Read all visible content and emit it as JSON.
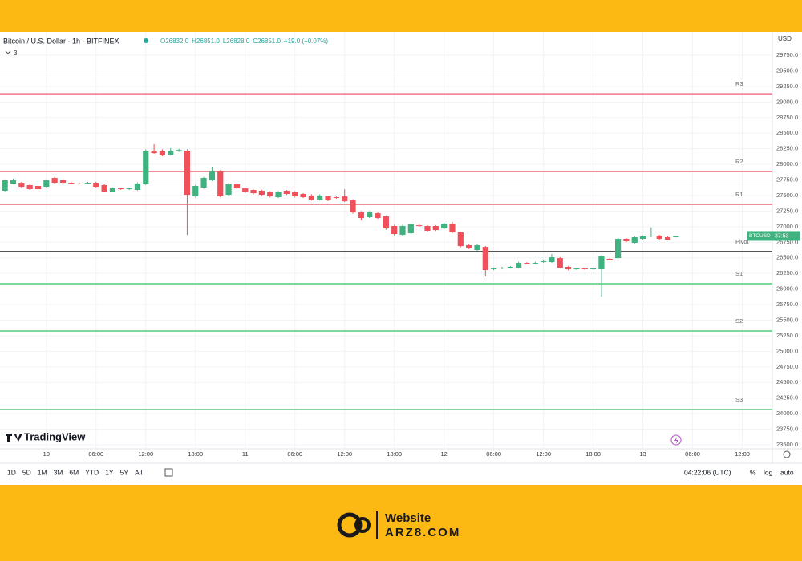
{
  "chart_data": {
    "type": "candlestick",
    "title": "Bitcoin / U.S. Dollar · 1h · BITFINEX",
    "indicator_count": "3",
    "ohlc_legend": [
      "O26832.0",
      "H26851.0",
      "L26828.0",
      "C26851.0",
      "+19.0 (+0.07%)"
    ],
    "currency": "USD",
    "symbol_tag": "BTCUSD",
    "countdown": "37:53",
    "watermark": "TradingView",
    "up_color": "#3fb27f",
    "down_color": "#ef5059",
    "categories": [
      null,
      null,
      null,
      null,
      null,
      "10",
      null,
      null,
      null,
      null,
      null,
      "06:00",
      null,
      null,
      null,
      null,
      null,
      "12:00",
      null,
      null,
      null,
      null,
      null,
      "18:00",
      null,
      null,
      null,
      null,
      null,
      "11",
      null,
      null,
      null,
      null,
      null,
      "06:00",
      null,
      null,
      null,
      null,
      null,
      "12:00",
      null,
      null,
      null,
      null,
      null,
      "18:00",
      null,
      null,
      null,
      null,
      null,
      "12",
      null,
      null,
      null,
      null,
      null,
      "06:00",
      null,
      null,
      null,
      null,
      null,
      "12:00",
      null,
      null,
      null,
      null,
      null,
      "18:00",
      null,
      null,
      null,
      null,
      null,
      "13",
      null,
      null,
      null,
      null,
      null,
      "06:00",
      null,
      null,
      null,
      null,
      null,
      "12:00",
      null,
      null,
      null
    ],
    "open": [
      27577,
      27692,
      27705,
      27667,
      27654,
      27641,
      27782,
      27744,
      27705,
      27692,
      27690,
      27705,
      27667,
      27564,
      27615,
      27602,
      27590,
      27680,
      28220,
      28220,
      28155,
      28220,
      28220,
      27487,
      27628,
      27744,
      27898,
      27512,
      27680,
      27615,
      27590,
      27577,
      27551,
      27474,
      27577,
      27551,
      27525,
      27500,
      27435,
      27487,
      27474,
      27487,
      27422,
      27229,
      27152,
      27216,
      27165,
      27011,
      26869,
      26895,
      27023,
      27011,
      27011,
      26972,
      27049,
      26908,
      26702,
      26625,
      26676,
      26316,
      26329,
      26342,
      26342,
      26419,
      26406,
      26432,
      26432,
      26496,
      26355,
      26316,
      26329,
      26316,
      26316,
      26484,
      26496,
      26805,
      26741,
      26805,
      26844,
      26857,
      26831,
      26832,
      null,
      null,
      null,
      null,
      null,
      null,
      null,
      null,
      null,
      null,
      null
    ],
    "high": [
      27760,
      27770,
      27720,
      27680,
      27670,
      27760,
      27800,
      27760,
      27720,
      27705,
      27720,
      27720,
      27680,
      27630,
      27625,
      27630,
      27710,
      28240,
      28323,
      28240,
      28260,
      28250,
      28240,
      27670,
      27800,
      27960,
      27910,
      27700,
      27700,
      27630,
      27600,
      27590,
      27570,
      27570,
      27590,
      27570,
      27540,
      27520,
      27520,
      27500,
      27490,
      27600,
      27440,
      27250,
      27250,
      27230,
      27180,
      27030,
      27030,
      27050,
      27040,
      27025,
      27025,
      27065,
      27080,
      26920,
      26715,
      26720,
      26690,
      26345,
      26355,
      26370,
      26435,
      26430,
      26435,
      26460,
      26561,
      26510,
      26370,
      26340,
      26340,
      26345,
      26540,
      26500,
      26820,
      26820,
      26850,
      26860,
      26990,
      26870,
      26845,
      26851,
      null,
      null,
      null,
      null,
      null,
      null,
      null,
      null,
      null,
      null,
      null
    ],
    "low": [
      27560,
      27680,
      27630,
      27590,
      27600,
      27630,
      27690,
      27695,
      27680,
      27680,
      27680,
      27630,
      27550,
      27550,
      27590,
      27590,
      27580,
      27670,
      28170,
      28130,
      28140,
      28200,
      26869,
      27470,
      27610,
      27730,
      27470,
      27500,
      27600,
      27540,
      27520,
      27500,
      27470,
      27460,
      27510,
      27470,
      27460,
      27420,
      27420,
      27410,
      27450,
      27395,
      27210,
      27100,
      27140,
      27125,
      26950,
      26860,
      26850,
      26880,
      27000,
      26920,
      26930,
      26960,
      26895,
      26670,
      26640,
      26610,
      26201,
      26300,
      26315,
      26330,
      26330,
      26395,
      26395,
      26420,
      26420,
      26330,
      26300,
      26305,
      26300,
      26300,
      25879,
      26455,
      26480,
      26750,
      26730,
      26790,
      26830,
      26790,
      26780,
      26828,
      null,
      null,
      null,
      null,
      null,
      null,
      null,
      null,
      null,
      null,
      null
    ],
    "close": [
      27744,
      27744,
      27641,
      27602,
      27602,
      27744,
      27705,
      27705,
      27692,
      27690,
      27705,
      27641,
      27564,
      27615,
      27602,
      27615,
      27692,
      28220,
      28180,
      28142,
      28220,
      28230,
      27512,
      27654,
      27782,
      27898,
      27487,
      27680,
      27615,
      27551,
      27538,
      27512,
      27487,
      27551,
      27525,
      27487,
      27474,
      27435,
      27500,
      27422,
      27461,
      27409,
      27229,
      27139,
      27229,
      27139,
      26972,
      26882,
      27011,
      27036,
      27011,
      26934,
      26946,
      27049,
      26908,
      26689,
      26651,
      26702,
      26304,
      26329,
      26342,
      26355,
      26419,
      26406,
      26419,
      26445,
      26509,
      26342,
      26316,
      26329,
      26316,
      26329,
      26522,
      26470,
      26805,
      26766,
      26831,
      26844,
      26857,
      26805,
      26792,
      26851,
      null,
      null,
      null,
      null,
      null,
      null,
      null,
      null,
      null,
      null,
      null
    ],
    "levels": [
      {
        "label": "R3",
        "value": 29130,
        "color": "#f28b9b"
      },
      {
        "label": "R2",
        "value": 27885,
        "color": "#f28b9b"
      },
      {
        "label": "R1",
        "value": 27358,
        "color": "#f28b9b"
      },
      {
        "label": "Pivot",
        "value": 26600,
        "color": "#555555"
      },
      {
        "label": "S1",
        "value": 26085,
        "color": "#7fd89b"
      },
      {
        "label": "S2",
        "value": 25326,
        "color": "#7fd89b"
      },
      {
        "label": "S3",
        "value": 24066,
        "color": "#7fd89b"
      }
    ],
    "ylim": [
      23436,
      30059
    ],
    "yticks": [
      {
        "value": 23500,
        "label": "23500.0"
      },
      {
        "value": 23750,
        "label": "23750.0"
      },
      {
        "value": 24000,
        "label": "24000.0"
      },
      {
        "value": 24250,
        "label": "24250.0"
      },
      {
        "value": 24500,
        "label": "24500.0"
      },
      {
        "value": 24750,
        "label": "24750.0"
      },
      {
        "value": 25000,
        "label": "25000.0"
      },
      {
        "value": 25250,
        "label": "25250.0"
      },
      {
        "value": 25500,
        "label": "25500.0"
      },
      {
        "value": 25750,
        "label": "25750.0"
      },
      {
        "value": 26000,
        "label": "26000.0"
      },
      {
        "value": 26250,
        "label": "26250.0"
      },
      {
        "value": 26500,
        "label": "26500.0"
      },
      {
        "value": 26750,
        "label": "26750.0"
      },
      {
        "value": 27000,
        "label": "27000.0"
      },
      {
        "value": 27250,
        "label": "27250.0"
      },
      {
        "value": 27500,
        "label": "27500.0"
      },
      {
        "value": 27750,
        "label": "27750.0"
      },
      {
        "value": 28000,
        "label": "28000.0"
      },
      {
        "value": 28250,
        "label": "28250.0"
      },
      {
        "value": 28500,
        "label": "28500.0"
      },
      {
        "value": 28750,
        "label": "28750.0"
      },
      {
        "value": 29000,
        "label": "29000.0"
      },
      {
        "value": 29250,
        "label": "29250.0"
      },
      {
        "value": 29500,
        "label": "29500.0"
      },
      {
        "value": 29750,
        "label": "29750.0"
      }
    ],
    "grid": true,
    "toolbar": {
      "ranges": [
        "1D",
        "5D",
        "1M",
        "3M",
        "6M",
        "YTD",
        "1Y",
        "5Y",
        "All"
      ],
      "clock": "04:22:06 (UTC)",
      "options": [
        "%",
        "log",
        "auto"
      ]
    },
    "brand": {
      "line1": "Website",
      "line2": "ARZ8.COM"
    }
  }
}
